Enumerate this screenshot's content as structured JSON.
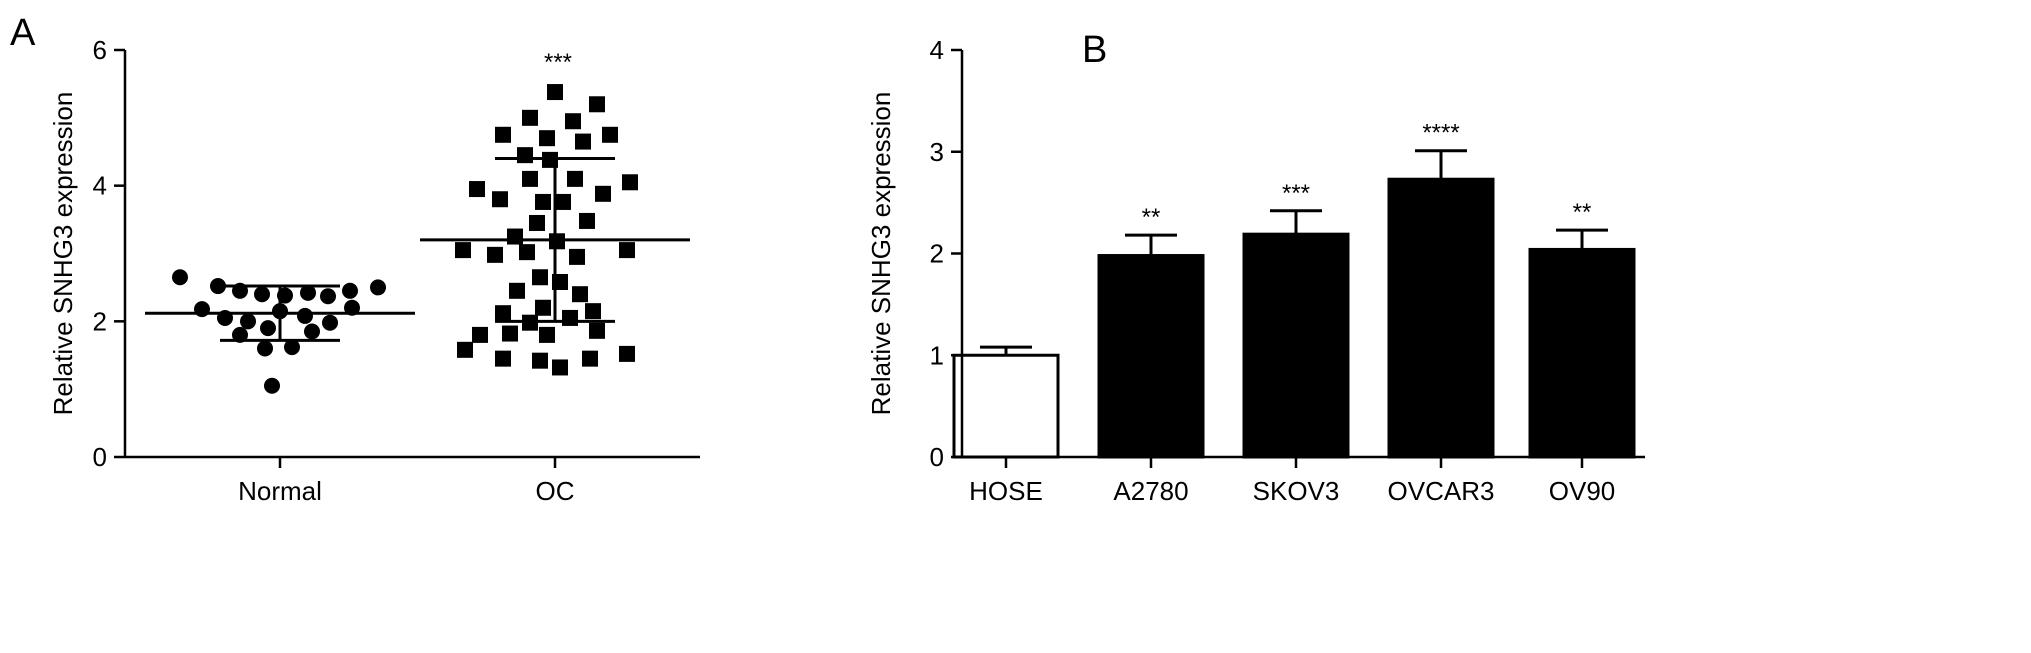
{
  "panels": {
    "a": {
      "letter": "A"
    },
    "b": {
      "letter": "B"
    }
  },
  "chart_data": [
    {
      "type": "scatter",
      "panel": "A",
      "ylabel": "Relative SNHG3 expression",
      "ylim": [
        0,
        6
      ],
      "yticks": [
        0,
        2,
        4,
        6
      ],
      "categories": [
        "Normal",
        "OC"
      ],
      "series": [
        {
          "category": "Normal",
          "marker": "circle",
          "mean": 2.12,
          "sd_upper": 2.52,
          "sd_lower": 1.72,
          "significance": "",
          "points": [
            {
              "dx": -1.0,
              "y": 2.65
            },
            {
              "dx": -0.62,
              "y": 2.52
            },
            {
              "dx": -0.4,
              "y": 2.45
            },
            {
              "dx": -0.18,
              "y": 2.4
            },
            {
              "dx": 0.05,
              "y": 2.38
            },
            {
              "dx": 0.28,
              "y": 2.42
            },
            {
              "dx": 0.48,
              "y": 2.37
            },
            {
              "dx": 0.7,
              "y": 2.45
            },
            {
              "dx": 0.98,
              "y": 2.5
            },
            {
              "dx": -0.78,
              "y": 2.18
            },
            {
              "dx": -0.55,
              "y": 2.05
            },
            {
              "dx": -0.32,
              "y": 2.0
            },
            {
              "dx": 0.0,
              "y": 2.15
            },
            {
              "dx": 0.25,
              "y": 2.08
            },
            {
              "dx": 0.5,
              "y": 1.98
            },
            {
              "dx": 0.72,
              "y": 2.2
            },
            {
              "dx": -0.4,
              "y": 1.8
            },
            {
              "dx": -0.12,
              "y": 1.9
            },
            {
              "dx": 0.32,
              "y": 1.85
            },
            {
              "dx": -0.15,
              "y": 1.6
            },
            {
              "dx": 0.12,
              "y": 1.62
            },
            {
              "dx": -0.08,
              "y": 1.05
            }
          ]
        },
        {
          "category": "OC",
          "marker": "square",
          "mean": 3.2,
          "sd_upper": 4.4,
          "sd_lower": 2.0,
          "significance": "***",
          "points": [
            {
              "dx": 0.0,
              "y": 5.38
            },
            {
              "dx": 0.42,
              "y": 5.2
            },
            {
              "dx": -0.25,
              "y": 5.0
            },
            {
              "dx": 0.18,
              "y": 4.95
            },
            {
              "dx": -0.52,
              "y": 4.75
            },
            {
              "dx": -0.08,
              "y": 4.7
            },
            {
              "dx": 0.28,
              "y": 4.65
            },
            {
              "dx": 0.55,
              "y": 4.75
            },
            {
              "dx": -0.3,
              "y": 4.45
            },
            {
              "dx": -0.05,
              "y": 4.38
            },
            {
              "dx": -0.78,
              "y": 3.95
            },
            {
              "dx": -0.25,
              "y": 4.1
            },
            {
              "dx": 0.2,
              "y": 4.1
            },
            {
              "dx": 0.75,
              "y": 4.05
            },
            {
              "dx": 0.48,
              "y": 3.88
            },
            {
              "dx": -0.55,
              "y": 3.8
            },
            {
              "dx": -0.12,
              "y": 3.76
            },
            {
              "dx": 0.08,
              "y": 3.76
            },
            {
              "dx": -0.18,
              "y": 3.45
            },
            {
              "dx": 0.32,
              "y": 3.48
            },
            {
              "dx": -0.4,
              "y": 3.25
            },
            {
              "dx": 0.02,
              "y": 3.18
            },
            {
              "dx": -0.92,
              "y": 3.05
            },
            {
              "dx": -0.6,
              "y": 2.98
            },
            {
              "dx": -0.28,
              "y": 3.02
            },
            {
              "dx": 0.22,
              "y": 2.95
            },
            {
              "dx": 0.72,
              "y": 3.05
            },
            {
              "dx": -0.15,
              "y": 2.65
            },
            {
              "dx": 0.05,
              "y": 2.58
            },
            {
              "dx": -0.38,
              "y": 2.45
            },
            {
              "dx": 0.25,
              "y": 2.4
            },
            {
              "dx": -0.52,
              "y": 2.12
            },
            {
              "dx": -0.12,
              "y": 2.2
            },
            {
              "dx": 0.38,
              "y": 2.15
            },
            {
              "dx": -0.25,
              "y": 1.98
            },
            {
              "dx": 0.15,
              "y": 2.05
            },
            {
              "dx": -0.75,
              "y": 1.8
            },
            {
              "dx": -0.45,
              "y": 1.82
            },
            {
              "dx": -0.08,
              "y": 1.8
            },
            {
              "dx": 0.42,
              "y": 1.86
            },
            {
              "dx": -0.9,
              "y": 1.58
            },
            {
              "dx": -0.52,
              "y": 1.45
            },
            {
              "dx": -0.15,
              "y": 1.42
            },
            {
              "dx": 0.05,
              "y": 1.32
            },
            {
              "dx": 0.35,
              "y": 1.45
            },
            {
              "dx": 0.72,
              "y": 1.52
            }
          ]
        }
      ]
    },
    {
      "type": "bar",
      "panel": "B",
      "ylabel": "Relative SNHG3 expression",
      "ylim": [
        0,
        4
      ],
      "yticks": [
        0,
        1,
        2,
        3,
        4
      ],
      "categories": [
        "HOSE",
        "A2780",
        "SKOV3",
        "OVCAR3",
        "OV90"
      ],
      "values": [
        1.0,
        1.98,
        2.19,
        2.73,
        2.04
      ],
      "errors": [
        0.08,
        0.2,
        0.23,
        0.28,
        0.19
      ],
      "significance": [
        "",
        "**",
        "***",
        "****",
        "**"
      ],
      "colors": [
        "#ffffff",
        "#000000",
        "#000000",
        "#000000",
        "#000000"
      ]
    }
  ]
}
